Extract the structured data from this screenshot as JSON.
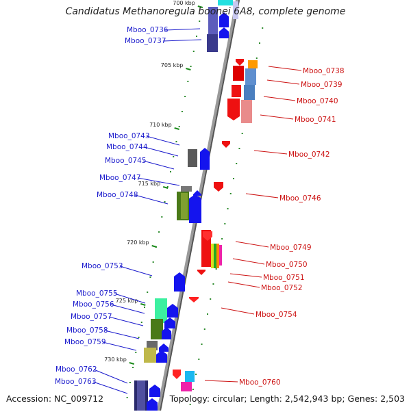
{
  "title": "Candidatus Methanoregula boonei 6A8, complete genome",
  "accession": "Accession: NC_009712",
  "topology": "Topology: circular; Length: 2,542,943 bp; Genes: 2,503",
  "colors": {
    "forward_label": "#1a1acc",
    "reverse_label": "#cc1111",
    "backbone": "#8c8c8c",
    "tick_dots": "#2a8a2a",
    "blue_gene": "#1414ee",
    "red_gene": "#ee1111"
  },
  "scale_labels": [
    "700 kbp",
    "705 kbp",
    "710 kbp",
    "715 kbp",
    "720 kbp",
    "725 kbp",
    "730 kbp"
  ],
  "forward_genes": [
    "Mboo_0736",
    "Mboo_0737",
    "Mboo_0743",
    "Mboo_0744",
    "Mboo_0745",
    "Mboo_0747",
    "Mboo_0748",
    "Mboo_0753",
    "Mboo_0755",
    "Mboo_0756",
    "Mboo_0757",
    "Mboo_0758",
    "Mboo_0759",
    "Mboo_0762",
    "Mboo_0763"
  ],
  "reverse_genes": [
    "Mboo_0738",
    "Mboo_0739",
    "Mboo_0740",
    "Mboo_0741",
    "Mboo_0742",
    "Mboo_0746",
    "Mboo_0749",
    "Mboo_0750",
    "Mboo_0751",
    "Mboo_0752",
    "Mboo_0754",
    "Mboo_0760"
  ]
}
